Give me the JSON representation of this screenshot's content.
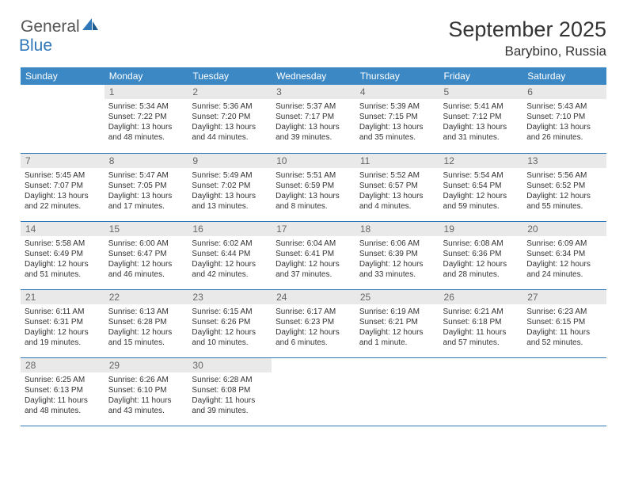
{
  "brand": {
    "general": "General",
    "blue": "Blue"
  },
  "title": {
    "month_year": "September 2025",
    "location": "Barybino, Russia"
  },
  "dow": [
    "Sunday",
    "Monday",
    "Tuesday",
    "Wednesday",
    "Thursday",
    "Friday",
    "Saturday"
  ],
  "colors": {
    "header_bg": "#3b88c5",
    "rule": "#2f77b8",
    "daynum_bg": "#e9e9e9"
  },
  "weeks": [
    [
      {
        "n": "",
        "sr": "",
        "ss": "",
        "dl": ""
      },
      {
        "n": "1",
        "sr": "Sunrise: 5:34 AM",
        "ss": "Sunset: 7:22 PM",
        "dl": "Daylight: 13 hours and 48 minutes."
      },
      {
        "n": "2",
        "sr": "Sunrise: 5:36 AM",
        "ss": "Sunset: 7:20 PM",
        "dl": "Daylight: 13 hours and 44 minutes."
      },
      {
        "n": "3",
        "sr": "Sunrise: 5:37 AM",
        "ss": "Sunset: 7:17 PM",
        "dl": "Daylight: 13 hours and 39 minutes."
      },
      {
        "n": "4",
        "sr": "Sunrise: 5:39 AM",
        "ss": "Sunset: 7:15 PM",
        "dl": "Daylight: 13 hours and 35 minutes."
      },
      {
        "n": "5",
        "sr": "Sunrise: 5:41 AM",
        "ss": "Sunset: 7:12 PM",
        "dl": "Daylight: 13 hours and 31 minutes."
      },
      {
        "n": "6",
        "sr": "Sunrise: 5:43 AM",
        "ss": "Sunset: 7:10 PM",
        "dl": "Daylight: 13 hours and 26 minutes."
      }
    ],
    [
      {
        "n": "7",
        "sr": "Sunrise: 5:45 AM",
        "ss": "Sunset: 7:07 PM",
        "dl": "Daylight: 13 hours and 22 minutes."
      },
      {
        "n": "8",
        "sr": "Sunrise: 5:47 AM",
        "ss": "Sunset: 7:05 PM",
        "dl": "Daylight: 13 hours and 17 minutes."
      },
      {
        "n": "9",
        "sr": "Sunrise: 5:49 AM",
        "ss": "Sunset: 7:02 PM",
        "dl": "Daylight: 13 hours and 13 minutes."
      },
      {
        "n": "10",
        "sr": "Sunrise: 5:51 AM",
        "ss": "Sunset: 6:59 PM",
        "dl": "Daylight: 13 hours and 8 minutes."
      },
      {
        "n": "11",
        "sr": "Sunrise: 5:52 AM",
        "ss": "Sunset: 6:57 PM",
        "dl": "Daylight: 13 hours and 4 minutes."
      },
      {
        "n": "12",
        "sr": "Sunrise: 5:54 AM",
        "ss": "Sunset: 6:54 PM",
        "dl": "Daylight: 12 hours and 59 minutes."
      },
      {
        "n": "13",
        "sr": "Sunrise: 5:56 AM",
        "ss": "Sunset: 6:52 PM",
        "dl": "Daylight: 12 hours and 55 minutes."
      }
    ],
    [
      {
        "n": "14",
        "sr": "Sunrise: 5:58 AM",
        "ss": "Sunset: 6:49 PM",
        "dl": "Daylight: 12 hours and 51 minutes."
      },
      {
        "n": "15",
        "sr": "Sunrise: 6:00 AM",
        "ss": "Sunset: 6:47 PM",
        "dl": "Daylight: 12 hours and 46 minutes."
      },
      {
        "n": "16",
        "sr": "Sunrise: 6:02 AM",
        "ss": "Sunset: 6:44 PM",
        "dl": "Daylight: 12 hours and 42 minutes."
      },
      {
        "n": "17",
        "sr": "Sunrise: 6:04 AM",
        "ss": "Sunset: 6:41 PM",
        "dl": "Daylight: 12 hours and 37 minutes."
      },
      {
        "n": "18",
        "sr": "Sunrise: 6:06 AM",
        "ss": "Sunset: 6:39 PM",
        "dl": "Daylight: 12 hours and 33 minutes."
      },
      {
        "n": "19",
        "sr": "Sunrise: 6:08 AM",
        "ss": "Sunset: 6:36 PM",
        "dl": "Daylight: 12 hours and 28 minutes."
      },
      {
        "n": "20",
        "sr": "Sunrise: 6:09 AM",
        "ss": "Sunset: 6:34 PM",
        "dl": "Daylight: 12 hours and 24 minutes."
      }
    ],
    [
      {
        "n": "21",
        "sr": "Sunrise: 6:11 AM",
        "ss": "Sunset: 6:31 PM",
        "dl": "Daylight: 12 hours and 19 minutes."
      },
      {
        "n": "22",
        "sr": "Sunrise: 6:13 AM",
        "ss": "Sunset: 6:28 PM",
        "dl": "Daylight: 12 hours and 15 minutes."
      },
      {
        "n": "23",
        "sr": "Sunrise: 6:15 AM",
        "ss": "Sunset: 6:26 PM",
        "dl": "Daylight: 12 hours and 10 minutes."
      },
      {
        "n": "24",
        "sr": "Sunrise: 6:17 AM",
        "ss": "Sunset: 6:23 PM",
        "dl": "Daylight: 12 hours and 6 minutes."
      },
      {
        "n": "25",
        "sr": "Sunrise: 6:19 AM",
        "ss": "Sunset: 6:21 PM",
        "dl": "Daylight: 12 hours and 1 minute."
      },
      {
        "n": "26",
        "sr": "Sunrise: 6:21 AM",
        "ss": "Sunset: 6:18 PM",
        "dl": "Daylight: 11 hours and 57 minutes."
      },
      {
        "n": "27",
        "sr": "Sunrise: 6:23 AM",
        "ss": "Sunset: 6:15 PM",
        "dl": "Daylight: 11 hours and 52 minutes."
      }
    ],
    [
      {
        "n": "28",
        "sr": "Sunrise: 6:25 AM",
        "ss": "Sunset: 6:13 PM",
        "dl": "Daylight: 11 hours and 48 minutes."
      },
      {
        "n": "29",
        "sr": "Sunrise: 6:26 AM",
        "ss": "Sunset: 6:10 PM",
        "dl": "Daylight: 11 hours and 43 minutes."
      },
      {
        "n": "30",
        "sr": "Sunrise: 6:28 AM",
        "ss": "Sunset: 6:08 PM",
        "dl": "Daylight: 11 hours and 39 minutes."
      },
      {
        "n": "",
        "sr": "",
        "ss": "",
        "dl": ""
      },
      {
        "n": "",
        "sr": "",
        "ss": "",
        "dl": ""
      },
      {
        "n": "",
        "sr": "",
        "ss": "",
        "dl": ""
      },
      {
        "n": "",
        "sr": "",
        "ss": "",
        "dl": ""
      }
    ]
  ]
}
